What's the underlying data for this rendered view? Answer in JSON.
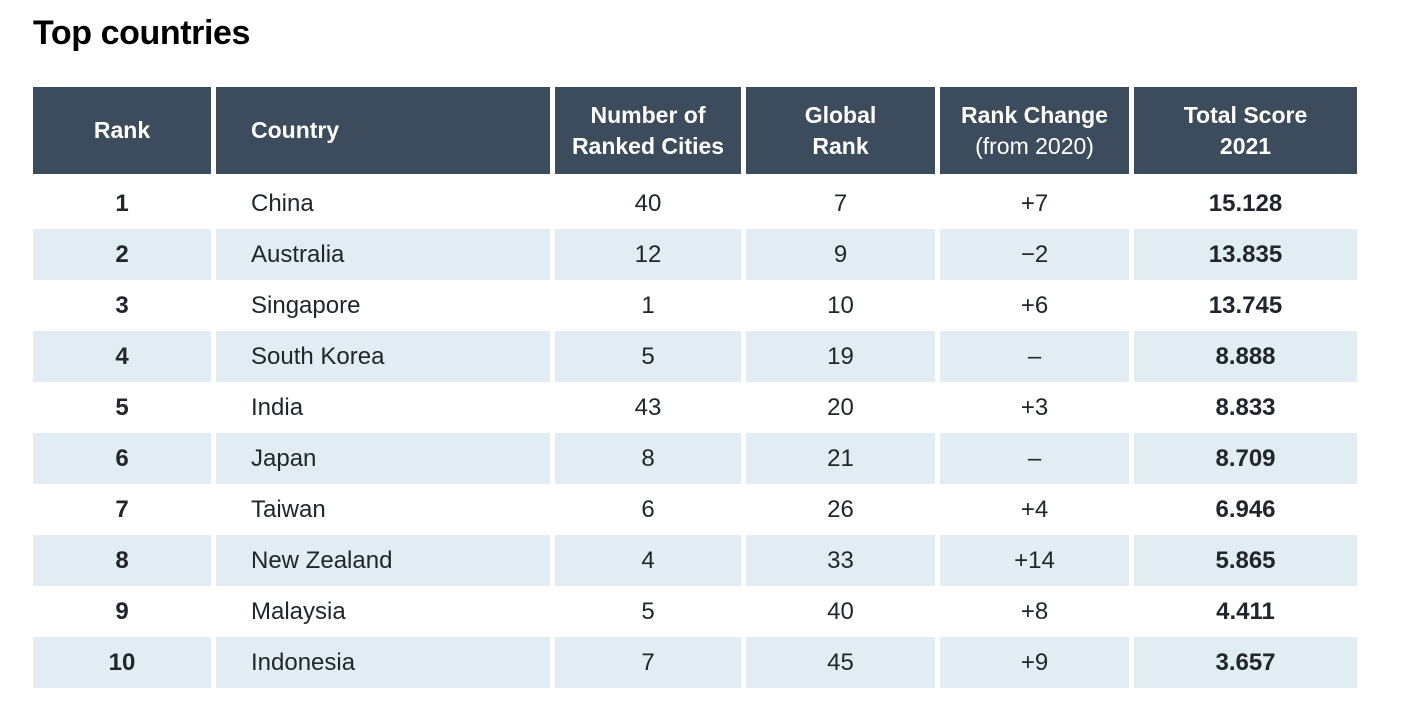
{
  "theme": {
    "header_bg": "#3c4c5c",
    "header_text": "#ffffff",
    "row_stripe_bg": "#e1edf2",
    "body_text": "#20262c",
    "title_color": "#000000"
  },
  "chart_data": {
    "type": "table",
    "title": "Top countries",
    "layout": {
      "grid": "off",
      "header_style": "dark-band",
      "row_style": "zebra-striped"
    },
    "columns": [
      {
        "id": "rank",
        "lines": [
          "Rank"
        ]
      },
      {
        "id": "country",
        "lines": [
          "Country"
        ]
      },
      {
        "id": "ranked_cities",
        "lines": [
          "Number of",
          "Ranked Cities"
        ]
      },
      {
        "id": "global_rank",
        "lines": [
          "Global",
          "Rank"
        ]
      },
      {
        "id": "rank_change",
        "lines": [
          "Rank Change",
          "(from 2020)"
        ]
      },
      {
        "id": "total_score",
        "lines": [
          "Total Score",
          "2021"
        ]
      }
    ],
    "rows": [
      {
        "rank": "1",
        "country": "China",
        "ranked_cities": "40",
        "global_rank": "7",
        "rank_change": "+7",
        "total_score": "15.128"
      },
      {
        "rank": "2",
        "country": "Australia",
        "ranked_cities": "12",
        "global_rank": "9",
        "rank_change": "−2",
        "total_score": "13.835"
      },
      {
        "rank": "3",
        "country": "Singapore",
        "ranked_cities": "1",
        "global_rank": "10",
        "rank_change": "+6",
        "total_score": "13.745"
      },
      {
        "rank": "4",
        "country": "South Korea",
        "ranked_cities": "5",
        "global_rank": "19",
        "rank_change": "–",
        "total_score": "8.888"
      },
      {
        "rank": "5",
        "country": "India",
        "ranked_cities": "43",
        "global_rank": "20",
        "rank_change": "+3",
        "total_score": "8.833"
      },
      {
        "rank": "6",
        "country": "Japan",
        "ranked_cities": "8",
        "global_rank": "21",
        "rank_change": "–",
        "total_score": "8.709"
      },
      {
        "rank": "7",
        "country": "Taiwan",
        "ranked_cities": "6",
        "global_rank": "26",
        "rank_change": "+4",
        "total_score": "6.946"
      },
      {
        "rank": "8",
        "country": "New Zealand",
        "ranked_cities": "4",
        "global_rank": "33",
        "rank_change": "+14",
        "total_score": "5.865"
      },
      {
        "rank": "9",
        "country": "Malaysia",
        "ranked_cities": "5",
        "global_rank": "40",
        "rank_change": "+8",
        "total_score": "4.411"
      },
      {
        "rank": "10",
        "country": "Indonesia",
        "ranked_cities": "7",
        "global_rank": "45",
        "rank_change": "+9",
        "total_score": "3.657"
      }
    ]
  }
}
